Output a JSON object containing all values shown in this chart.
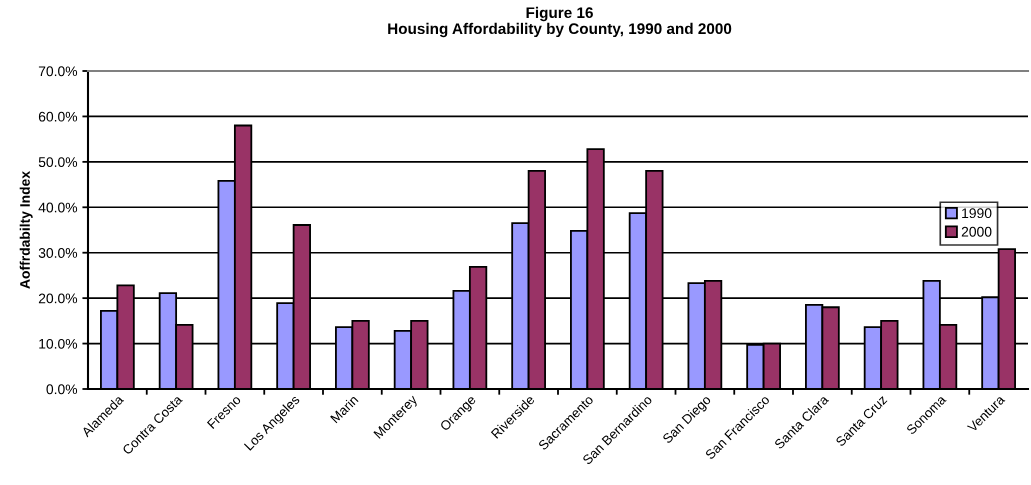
{
  "chart_data": {
    "type": "bar",
    "title": "Figure 16",
    "subtitle": "Housing Affordability by County, 1990 and 2000",
    "ylabel": "Aoffrdabilty Index",
    "categories": [
      "Alameda",
      "Contra Costa",
      "Fresno",
      "Los Angeles",
      "Marin",
      "Monterey",
      "Orange",
      "Riverside",
      "Sacramento",
      "San Bernardino",
      "San Diego",
      "San Francisco",
      "Santa Clara",
      "Santa Cruz",
      "Sonoma",
      "Ventura"
    ],
    "series": [
      {
        "name": "1990",
        "color": "#9999ff",
        "values": [
          17.2,
          21.1,
          45.8,
          18.9,
          13.6,
          12.8,
          21.6,
          36.5,
          34.8,
          38.7,
          23.3,
          9.7,
          18.5,
          13.6,
          23.8,
          20.2
        ]
      },
      {
        "name": "2000",
        "color": "#993366",
        "values": [
          22.8,
          14.1,
          58.0,
          36.1,
          15.0,
          15.0,
          26.9,
          48.0,
          52.8,
          48.0,
          23.8,
          10.0,
          18.0,
          15.0,
          14.1,
          30.8
        ]
      }
    ],
    "ylim": [
      0,
      70
    ],
    "yticks": [
      {
        "value": 0,
        "label": "0.0%"
      },
      {
        "value": 10,
        "label": "10.0%"
      },
      {
        "value": 20,
        "label": "20.0%"
      },
      {
        "value": 30,
        "label": "30.0%"
      },
      {
        "value": 40,
        "label": "40.0%"
      },
      {
        "value": 50,
        "label": "50.0%"
      },
      {
        "value": 60,
        "label": "60.0%"
      },
      {
        "value": 70,
        "label": "70.0%"
      }
    ],
    "grid": "y",
    "legend": "center right"
  }
}
